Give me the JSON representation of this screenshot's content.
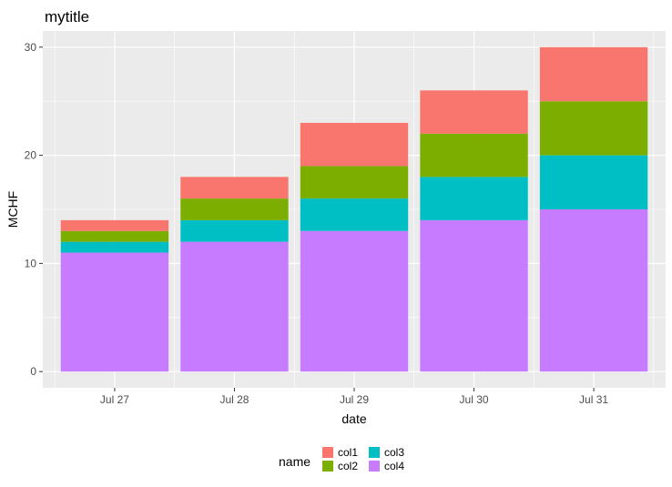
{
  "chart_data": {
    "type": "bar",
    "stacked": true,
    "title": "mytitle",
    "xlabel": "date",
    "ylabel": "MCHF",
    "categories": [
      "Jul 27",
      "Jul 28",
      "Jul 29",
      "Jul 30",
      "Jul 31"
    ],
    "yticks": [
      0,
      10,
      20,
      30
    ],
    "ylim": [
      -1.5,
      31.5
    ],
    "grid": true,
    "legend": {
      "title": "name",
      "position": "bottom",
      "entries": [
        "col1",
        "col2",
        "col3",
        "col4"
      ]
    },
    "series": [
      {
        "name": "col4",
        "color": "#C77CFF",
        "values": [
          11,
          12,
          13,
          14,
          15
        ]
      },
      {
        "name": "col3",
        "color": "#00BFC4",
        "values": [
          1,
          2,
          3,
          4,
          5
        ]
      },
      {
        "name": "col2",
        "color": "#7CAE00",
        "values": [
          1,
          2,
          3,
          4,
          5
        ]
      },
      {
        "name": "col1",
        "color": "#F8766D",
        "values": [
          1,
          2,
          4,
          4,
          5
        ]
      }
    ],
    "panel_background": "#EBEBEB",
    "grid_color": "#FFFFFF"
  }
}
